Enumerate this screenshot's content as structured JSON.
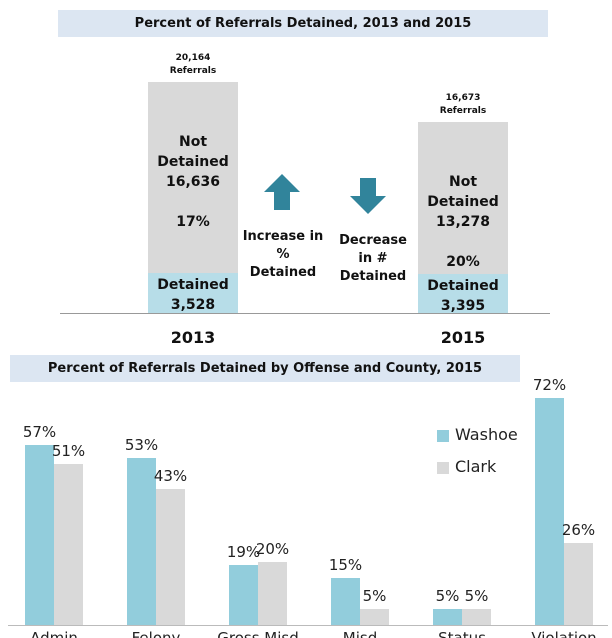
{
  "chart_data": [
    {
      "type": "stacked_bar",
      "title": "Percent of Referrals Detained, 2013 and 2015",
      "categories": [
        "2013",
        "2015"
      ],
      "series": [
        {
          "name": "Detained",
          "color": "#b7dde8",
          "values": [
            3528,
            3395
          ],
          "value_labels": [
            "3,528",
            "3,395"
          ]
        },
        {
          "name": "Not Detained",
          "color": "#d9d9d9",
          "values": [
            16636,
            13278
          ],
          "value_labels": [
            "16,636",
            "13,278"
          ]
        }
      ],
      "total_labels": [
        "20,164 Referrals",
        "16,673 Referrals"
      ],
      "percent_labels": [
        "17%",
        "20%"
      ],
      "annotations": [
        "Increase in % Detained",
        "Decrease in # Detained"
      ]
    },
    {
      "type": "bar",
      "title": "Percent of Referrals Detained by Offense and County, 2015",
      "categories": [
        "Admin",
        "Felony",
        "Gross Misd",
        "Misd",
        "Status",
        "Violation"
      ],
      "series": [
        {
          "name": "Washoe",
          "color": "#92cddc",
          "values": [
            57,
            53,
            19,
            15,
            5,
            72
          ],
          "value_labels": [
            "57%",
            "53%",
            "19%",
            "15%",
            "5%",
            "72%"
          ]
        },
        {
          "name": "Clark",
          "color": "#d9d9d9",
          "values": [
            51,
            43,
            20,
            5,
            5,
            26
          ],
          "value_labels": [
            "51%",
            "43%",
            "20%",
            "5%",
            "5%",
            "26%"
          ]
        }
      ],
      "legend": "upper right"
    }
  ]
}
